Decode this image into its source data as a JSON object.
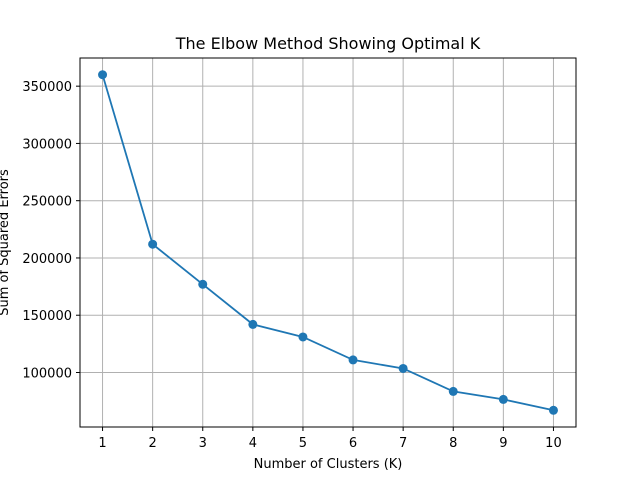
{
  "chart_data": {
    "type": "line",
    "title": "The Elbow Method Showing Optimal K",
    "xlabel": "Number of Clusters (K)",
    "ylabel": "Sum of Squared Errors",
    "x": [
      1,
      2,
      3,
      4,
      5,
      6,
      7,
      8,
      9,
      10
    ],
    "series": [
      {
        "values": [
          360000,
          212000,
          177000,
          142000,
          131000,
          111000,
          103500,
          83500,
          76500,
          67000
        ],
        "color": "#1f77b4",
        "marker": "circle"
      }
    ],
    "xlim": [
      0.55,
      10.45
    ],
    "ylim": [
      52400,
      374600
    ],
    "xticks": [
      1,
      2,
      3,
      4,
      5,
      6,
      7,
      8,
      9,
      10
    ],
    "xtick_labels": [
      "1",
      "2",
      "3",
      "4",
      "5",
      "6",
      "7",
      "8",
      "9",
      "10"
    ],
    "yticks": [
      100000,
      150000,
      200000,
      250000,
      300000,
      350000
    ],
    "ytick_labels": [
      "100000",
      "150000",
      "200000",
      "250000",
      "300000",
      "350000"
    ],
    "grid": true,
    "legend": "none"
  }
}
